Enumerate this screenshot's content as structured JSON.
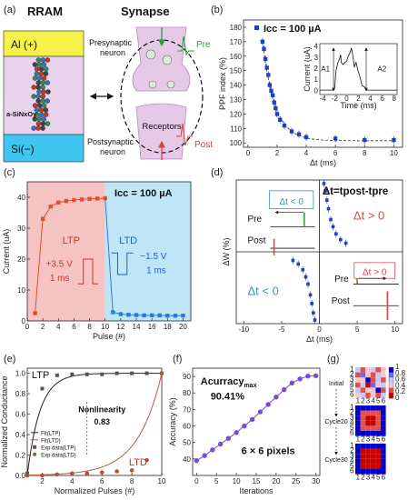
{
  "panel_labels": {
    "a": "(a)",
    "b": "(b)",
    "c": "(c)",
    "d": "(d)",
    "e": "(e)",
    "f": "(f)",
    "g": "(g)"
  },
  "panel_a": {
    "rram_title": "RRAM",
    "synapse_title": "Synapse",
    "top_electrode": "Al (+)",
    "switching_layer": "a-SiNxOy",
    "bottom_electrode": "Si(−)",
    "presynaptic": [
      "Presynaptic",
      "neuron"
    ],
    "postsynaptic": [
      "Postsynaptic",
      "neuron"
    ],
    "receptors": "Receptors",
    "pre_label": "Pre",
    "post_label": "Post",
    "colors": {
      "al": "#f7f24a",
      "si": "#3cc6f0",
      "layer": "#e9d3ec",
      "pre": "#2a9d3a",
      "post": "#e23b3b"
    }
  },
  "chart_data": [
    {
      "id": "b",
      "type": "scatter",
      "annotation": "Icc = 100 µA",
      "xlabel": "Δt (ms)",
      "ylabel": "PPF index (%)",
      "xlim": [
        -0.3,
        10.6
      ],
      "ylim": [
        97,
        185
      ],
      "xticks": [
        0,
        2,
        4,
        6,
        8,
        10
      ],
      "yticks": [
        100,
        110,
        120,
        130,
        140,
        150,
        160,
        170,
        180
      ],
      "points": [
        [
          1.0,
          170
        ],
        [
          1.1,
          165
        ],
        [
          1.2,
          158
        ],
        [
          1.3,
          152
        ],
        [
          1.4,
          147
        ],
        [
          1.5,
          140
        ],
        [
          1.6,
          136
        ],
        [
          1.7,
          133
        ],
        [
          1.8,
          128
        ],
        [
          1.9,
          124
        ],
        [
          2.0,
          120
        ],
        [
          2.2,
          116
        ],
        [
          2.5,
          112
        ],
        [
          3.0,
          108
        ],
        [
          3.5,
          106
        ],
        [
          4.0,
          104
        ],
        [
          6.0,
          103
        ],
        [
          8.0,
          102
        ],
        [
          10.0,
          102
        ]
      ],
      "fit": true,
      "marker_color": "#1d3fc7",
      "inset": {
        "xlabel": "Time (ms)",
        "ylabel": "Current (uA)",
        "xticks": [
          -4,
          -2,
          0,
          2,
          4,
          6,
          8
        ],
        "yticks": [
          0,
          1,
          2,
          3,
          4
        ],
        "xlim": [
          -4.5,
          8.5
        ],
        "ylim": [
          -0.3,
          4.3
        ],
        "trace": [
          [
            -4.5,
            0.1
          ],
          [
            -3,
            0.1
          ],
          [
            -2.2,
            0.1
          ],
          [
            -2.0,
            0.3
          ],
          [
            -1.8,
            1.8
          ],
          [
            -1.5,
            2.5
          ],
          [
            -1.2,
            2.9
          ],
          [
            -1.0,
            3.3
          ],
          [
            -0.9,
            2.6
          ],
          [
            -0.6,
            2.4
          ],
          [
            -0.3,
            2.6
          ],
          [
            0,
            2.7
          ],
          [
            0.3,
            3.2
          ],
          [
            0.6,
            3.5
          ],
          [
            0.8,
            3.9
          ],
          [
            1.0,
            3.4
          ],
          [
            1.3,
            2.2
          ],
          [
            1.6,
            2.6
          ],
          [
            1.9,
            1.9
          ],
          [
            2.2,
            1.4
          ],
          [
            2.6,
            0.5
          ],
          [
            3.0,
            0.4
          ],
          [
            3.4,
            0.1
          ],
          [
            4.0,
            0.1
          ],
          [
            5,
            0.1
          ],
          [
            6,
            0.1
          ],
          [
            7,
            0.1
          ],
          [
            8.5,
            0.1
          ]
        ],
        "labels": {
          "a1": "A1",
          "a2": "A2"
        }
      }
    },
    {
      "id": "c",
      "type": "line",
      "annotation": "Icc = 100 µA",
      "xlabel": "Pulse (#)",
      "ylabel": "Current (uA)",
      "xlim": [
        0,
        21
      ],
      "ylim": [
        0,
        45
      ],
      "xticks": [
        0,
        2,
        4,
        6,
        8,
        10,
        12,
        14,
        16,
        18,
        20
      ],
      "yticks": [
        0,
        10,
        20,
        30,
        40
      ],
      "ltp": [
        [
          1,
          2.5
        ],
        [
          2,
          33
        ],
        [
          3,
          37
        ],
        [
          4,
          38.3
        ],
        [
          5,
          38.8
        ],
        [
          6,
          39.1
        ],
        [
          7,
          39.3
        ],
        [
          8,
          39.5
        ],
        [
          9,
          39.6
        ],
        [
          10,
          39.7
        ]
      ],
      "ltd": [
        [
          10,
          39.7
        ],
        [
          11,
          2.8
        ],
        [
          12,
          2.2
        ],
        [
          13,
          2.0
        ],
        [
          14,
          1.9
        ],
        [
          15,
          1.8
        ],
        [
          16,
          1.8
        ],
        [
          17,
          1.8
        ],
        [
          18,
          1.7
        ],
        [
          19,
          1.7
        ],
        [
          20,
          1.7
        ]
      ],
      "ltp_label": "LTP",
      "ltd_label": "LTD",
      "ltp_pulse": [
        "+3.5 V",
        "1 ms"
      ],
      "ltd_pulse": [
        "−1.5 V",
        "1 ms"
      ],
      "colors": {
        "ltp_bg": "#f6c3c3",
        "ltd_bg": "#bfe6f7",
        "ltp": "#e0502e",
        "ltd": "#2a7bd8"
      }
    },
    {
      "id": "d",
      "type": "scatter",
      "title": "Δt=tpost-tpre",
      "xlabel": "Δt (ms)",
      "ylabel": "ΔW (%)",
      "xlim": [
        -11,
        11
      ],
      "ylim": [
        -1,
        1
      ],
      "xticks": [
        -10,
        -5,
        0,
        5,
        10
      ],
      "pos_points": [
        [
          0.6,
          0.95
        ],
        [
          0.8,
          0.85
        ],
        [
          1.0,
          0.72
        ],
        [
          1.2,
          0.6
        ],
        [
          1.5,
          0.45
        ],
        [
          1.8,
          0.35
        ],
        [
          2.2,
          0.25
        ],
        [
          2.8,
          0.17
        ],
        [
          3.5,
          0.12
        ]
      ],
      "neg_points": [
        [
          -3.5,
          -0.12
        ],
        [
          -2.8,
          -0.17
        ],
        [
          -2.2,
          -0.25
        ],
        [
          -1.8,
          -0.35
        ],
        [
          -1.5,
          -0.45
        ],
        [
          -1.2,
          -0.6
        ],
        [
          -1.0,
          -0.72
        ],
        [
          -0.8,
          -0.85
        ],
        [
          -0.6,
          -0.95
        ]
      ],
      "lt_label": "Δt < 0",
      "gt_label": "Δt > 0",
      "pre": "Pre",
      "post": "Post"
    },
    {
      "id": "e",
      "type": "scatter",
      "xlabel": "Normalized Pulses (#)",
      "ylabel": "Normalized Conductance",
      "xlim": [
        1,
        10
      ],
      "ylim": [
        0,
        1.05
      ],
      "xticks": [
        2,
        4,
        6,
        8,
        10
      ],
      "yticks": [
        0.0,
        0.2,
        0.4,
        0.6,
        0.8,
        1.0
      ],
      "ltp_points": [
        [
          1,
          0.02
        ],
        [
          2,
          0.85
        ],
        [
          3,
          0.98
        ],
        [
          4,
          0.99
        ],
        [
          5,
          0.99
        ],
        [
          6,
          0.99
        ],
        [
          7,
          1.0
        ],
        [
          8,
          1.0
        ],
        [
          9,
          1.0
        ],
        [
          10,
          1.0
        ]
      ],
      "ltd_points": [
        [
          1,
          0.0
        ],
        [
          2,
          0.0
        ],
        [
          3,
          0.01
        ],
        [
          4,
          0.02
        ],
        [
          5,
          0.02
        ],
        [
          6,
          0.03
        ],
        [
          7,
          0.04
        ],
        [
          8,
          0.05
        ],
        [
          9,
          0.15
        ],
        [
          10,
          1.0
        ]
      ],
      "ltp_label": "LTP",
      "ltd_label": "LTD",
      "nonlinearity": [
        "Nonlinearity",
        "0.83"
      ],
      "legend": [
        "Fit(LTP)",
        "Fit(LTD)",
        "Exp data(LTP)",
        "Exp data(LTD)"
      ],
      "colors": {
        "ltp": "#555555",
        "ltd": "#b0523e"
      }
    },
    {
      "id": "f",
      "type": "line",
      "xlabel": "Iterations",
      "ylabel": "Accuracy (%)",
      "xlim": [
        -1,
        31
      ],
      "ylim": [
        30,
        95
      ],
      "xticks": [
        0,
        5,
        10,
        15,
        20,
        25,
        30
      ],
      "yticks": [
        40,
        50,
        60,
        70,
        80,
        90
      ],
      "x": [
        0,
        2,
        4,
        6,
        8,
        10,
        12,
        14,
        16,
        18,
        20,
        22,
        24,
        26,
        28,
        30
      ],
      "y": [
        39,
        42,
        45.5,
        49,
        52.5,
        56,
        60,
        64,
        68.5,
        73,
        77.5,
        82,
        86,
        88.5,
        90.2,
        90.4
      ],
      "annotation": [
        "Acurracy",
        "max",
        "90.41%"
      ],
      "pixels_label": "6 × 6 pixels",
      "color": "#7a4ad8"
    }
  ],
  "panel_g": {
    "labels": [
      "Initial",
      "Cycle20",
      "Cycle30"
    ],
    "colorbar_ticks": [
      "1",
      "0.8",
      "0.6",
      "0.4",
      "0.2",
      "0"
    ],
    "tick_digits": [
      "1",
      "2",
      "3",
      "4",
      "5",
      "6"
    ],
    "cmap": [
      "#0000c8",
      "#6a6af0",
      "#c8c8f8",
      "#f4c8c8",
      "#e05050",
      "#c80000"
    ],
    "grids": [
      [
        [
          0.7,
          0.3,
          0.4,
          0.6,
          0.2,
          0.5
        ],
        [
          0.2,
          0.8,
          0.5,
          0.3,
          0.6,
          0.4
        ],
        [
          0.5,
          0.4,
          0.9,
          0.2,
          0.7,
          0.3
        ],
        [
          0.3,
          0.6,
          0.1,
          0.8,
          0.4,
          0.6
        ],
        [
          0.6,
          0.2,
          0.5,
          0.4,
          0.9,
          0.2
        ],
        [
          0.4,
          0.7,
          0.3,
          0.5,
          0.2,
          0.7
        ]
      ],
      [
        [
          0.9,
          0.9,
          0.9,
          0.9,
          0.9,
          0.9
        ],
        [
          0.9,
          0.3,
          0.25,
          0.3,
          0.3,
          0.9
        ],
        [
          0.9,
          0.25,
          0.1,
          0.1,
          0.3,
          0.9
        ],
        [
          0.9,
          0.3,
          0.1,
          0.1,
          0.25,
          0.9
        ],
        [
          0.9,
          0.3,
          0.3,
          0.25,
          0.3,
          0.9
        ],
        [
          0.9,
          0.9,
          0.9,
          0.9,
          0.9,
          0.9
        ]
      ],
      [
        [
          1,
          1,
          1,
          1,
          1,
          1
        ],
        [
          1,
          0.05,
          0.05,
          0.05,
          0.05,
          1
        ],
        [
          1,
          0.05,
          0,
          0,
          0.05,
          1
        ],
        [
          1,
          0.05,
          0,
          0,
          0.05,
          1
        ],
        [
          1,
          0.05,
          0.05,
          0.05,
          0.05,
          1
        ],
        [
          1,
          1,
          1,
          1,
          1,
          1
        ]
      ]
    ]
  }
}
